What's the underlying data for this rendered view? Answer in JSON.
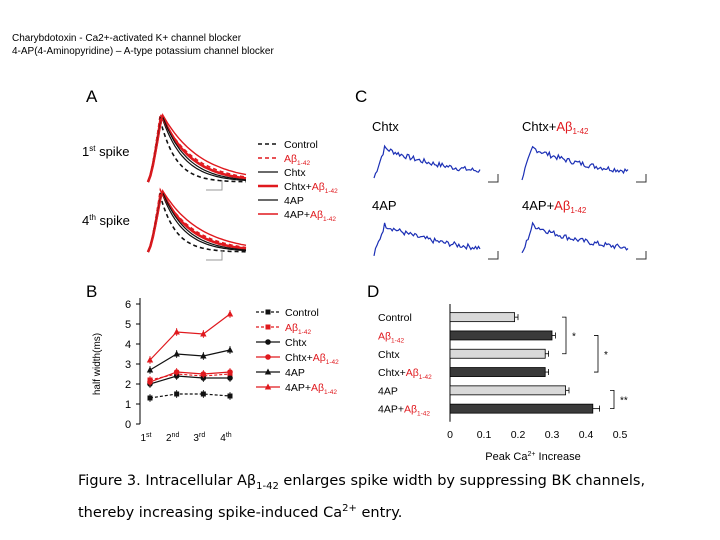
{
  "notes": [
    "Charybdotoxin - Ca2+-activated K+ channel blocker",
    "4-AP(4-Aminopyridine) – A-type potassium channel blocker"
  ],
  "panels": {
    "A": "A",
    "B": "B",
    "C": "C",
    "D": "D"
  },
  "panelA": {
    "row_labels": [
      {
        "base": "1",
        "sup": "st",
        "rest": " spike"
      },
      {
        "base": "4",
        "sup": "th",
        "rest": " spike"
      }
    ]
  },
  "legend": [
    {
      "label": "Control",
      "sub": "",
      "color": "#111111",
      "style": "dash",
      "width": 1.6
    },
    {
      "label": "Aβ",
      "sub": "1-42",
      "color": "#e0191e",
      "style": "dash",
      "width": 1.6
    },
    {
      "label": "Chtx",
      "sub": "",
      "color": "#111111",
      "style": "solid",
      "width": 1.2
    },
    {
      "label": "Chtx+Aβ",
      "sub": "1-42",
      "color": "#e0191e",
      "style": "solid",
      "width": 2.6
    },
    {
      "label": "4AP",
      "sub": "",
      "color": "#111111",
      "style": "solid",
      "width": 1.2
    },
    {
      "label": "4AP+Aβ",
      "sub": "1-42",
      "color": "#e0191e",
      "style": "solid",
      "width": 1.4
    }
  ],
  "panelC": {
    "traces": [
      {
        "label": "Chtx",
        "sub": "",
        "red": ""
      },
      {
        "label": "Chtx+",
        "sub": "1-42",
        "red": "Aβ"
      },
      {
        "label": "4AP",
        "sub": "",
        "red": ""
      },
      {
        "label": "4AP+",
        "sub": "1-42",
        "red": "Aβ"
      }
    ]
  },
  "chart_data": [
    {
      "panel": "B",
      "type": "line",
      "title": "",
      "ylabel": "half width(ms)",
      "xlabel": "",
      "categories": [
        {
          "base": "1",
          "sup": "st"
        },
        {
          "base": "2",
          "sup": "nd"
        },
        {
          "base": "3",
          "sup": "rd"
        },
        {
          "base": "4",
          "sup": "th"
        }
      ],
      "ylim": [
        0,
        6
      ],
      "yticks": [
        0,
        1,
        2,
        3,
        4,
        5,
        6
      ],
      "series": [
        {
          "name": "Control",
          "sub": "",
          "color": "#111111",
          "dash": true,
          "marker": "square",
          "values": [
            1.3,
            1.5,
            1.5,
            1.4
          ]
        },
        {
          "name": "Aβ",
          "sub": "1-42",
          "color": "#e0191e",
          "dash": true,
          "marker": "square",
          "values": [
            2.2,
            2.5,
            2.4,
            2.5
          ]
        },
        {
          "name": "Chtx",
          "sub": "",
          "color": "#111111",
          "dash": false,
          "marker": "circle",
          "values": [
            2.0,
            2.4,
            2.3,
            2.3
          ]
        },
        {
          "name": "Chtx+Aβ",
          "sub": "1-42",
          "color": "#e0191e",
          "dash": false,
          "marker": "circle",
          "values": [
            2.1,
            2.6,
            2.5,
            2.6
          ]
        },
        {
          "name": "4AP",
          "sub": "",
          "color": "#111111",
          "dash": false,
          "marker": "triangle",
          "values": [
            2.7,
            3.5,
            3.4,
            3.7
          ]
        },
        {
          "name": "4AP+Aβ",
          "sub": "1-42",
          "color": "#e0191e",
          "dash": false,
          "marker": "triangle",
          "values": [
            3.2,
            4.6,
            4.5,
            5.5
          ]
        }
      ]
    },
    {
      "panel": "D",
      "type": "bar",
      "orientation": "horizontal",
      "xlabel": "Peak Ca2+ Increase",
      "xlim": [
        0,
        0.5
      ],
      "xticks": [
        "0",
        "0.1",
        "0.2",
        "0.3",
        "0.4",
        "0.5"
      ],
      "categories": [
        {
          "label": "Control",
          "sub": ""
        },
        {
          "label": "Aβ",
          "sub": "1-42",
          "red": true
        },
        {
          "label": "Chtx",
          "sub": ""
        },
        {
          "label": "Chtx+Aβ",
          "sub": "1-42"
        },
        {
          "label": "4AP",
          "sub": ""
        },
        {
          "label": "4AP+Aβ",
          "sub": "1-42"
        }
      ],
      "values": [
        0.19,
        0.3,
        0.28,
        0.28,
        0.34,
        0.42
      ],
      "errors": [
        0.01,
        0.01,
        0.01,
        0.01,
        0.01,
        0.02
      ],
      "fills": [
        "#d9d9d9",
        "#3a3a3a",
        "#d9d9d9",
        "#3a3a3a",
        "#d9d9d9",
        "#3a3a3a"
      ],
      "annotations": [
        "*",
        "*",
        "**"
      ]
    }
  ],
  "caption": {
    "line1_a": "Figure 3. Intracellular Aβ",
    "line1_sub": "1-42",
    "line1_b": " enlarges spike width by suppressing BK channels,",
    "line2_a": "thereby increasing spike-induced Ca",
    "line2_sup": "2+",
    "line2_b": " entry."
  }
}
